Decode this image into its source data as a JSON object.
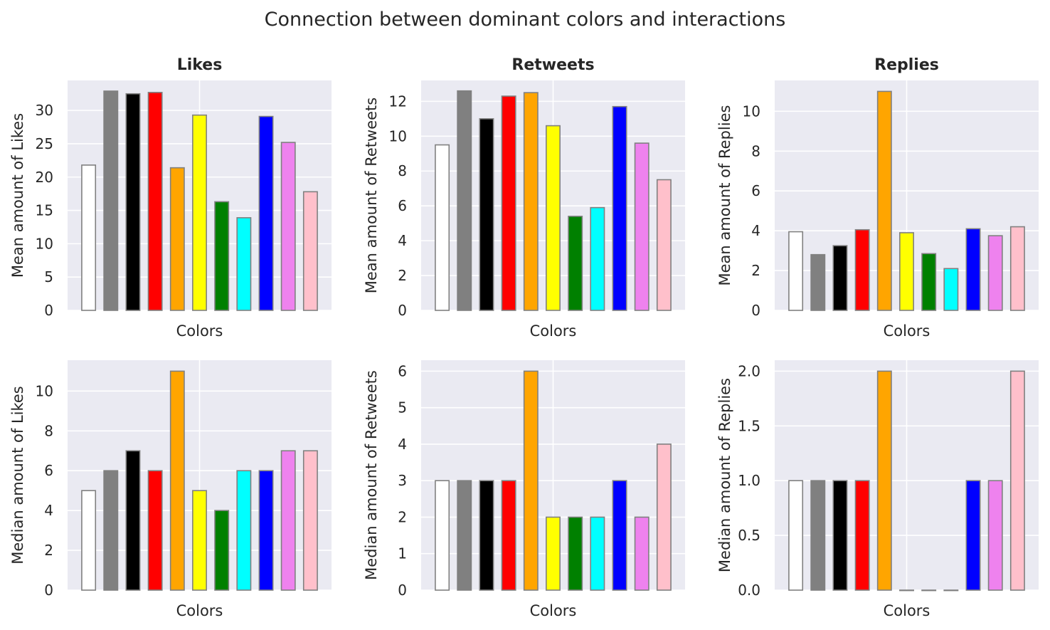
{
  "figure": {
    "title": "Connection between dominant colors and interactions"
  },
  "chart_data": [
    {
      "type": "bar",
      "title": "Likes",
      "xlabel": "Colors",
      "ylabel": "Mean amount of Likes",
      "categories": [
        "white",
        "gray",
        "black",
        "red",
        "orange",
        "yellow",
        "green",
        "cyan",
        "blue",
        "violet",
        "pink"
      ],
      "bar_colors": [
        "#ffffff",
        "#808080",
        "#000000",
        "#ff0000",
        "#ffa500",
        "#ffff00",
        "#008000",
        "#00ffff",
        "#0000ff",
        "#ee82ee",
        "#ffc0cb"
      ],
      "values": [
        21.8,
        32.9,
        32.5,
        32.7,
        21.4,
        29.3,
        16.3,
        13.9,
        29.1,
        25.2,
        17.8
      ],
      "ylim": [
        0,
        34.5
      ],
      "yticks": [
        0,
        5,
        10,
        15,
        20,
        25,
        30
      ],
      "grid": true
    },
    {
      "type": "bar",
      "title": "Retweets",
      "xlabel": "Colors",
      "ylabel": "Mean amount of Retweets",
      "categories": [
        "white",
        "gray",
        "black",
        "red",
        "orange",
        "yellow",
        "green",
        "cyan",
        "blue",
        "violet",
        "pink"
      ],
      "bar_colors": [
        "#ffffff",
        "#808080",
        "#000000",
        "#ff0000",
        "#ffa500",
        "#ffff00",
        "#008000",
        "#00ffff",
        "#0000ff",
        "#ee82ee",
        "#ffc0cb"
      ],
      "values": [
        9.5,
        12.6,
        11.0,
        12.3,
        12.5,
        10.6,
        5.4,
        5.9,
        11.7,
        9.6,
        7.5
      ],
      "ylim": [
        0,
        13.2
      ],
      "yticks": [
        0,
        2,
        4,
        6,
        8,
        10,
        12
      ],
      "grid": true
    },
    {
      "type": "bar",
      "title": "Replies",
      "xlabel": "Colors",
      "ylabel": "Mean amount of Replies",
      "categories": [
        "white",
        "gray",
        "black",
        "red",
        "orange",
        "yellow",
        "green",
        "cyan",
        "blue",
        "violet",
        "pink"
      ],
      "bar_colors": [
        "#ffffff",
        "#808080",
        "#000000",
        "#ff0000",
        "#ffa500",
        "#ffff00",
        "#008000",
        "#00ffff",
        "#0000ff",
        "#ee82ee",
        "#ffc0cb"
      ],
      "values": [
        3.95,
        2.8,
        3.25,
        4.05,
        11.0,
        3.9,
        2.85,
        2.1,
        4.1,
        3.75,
        4.2
      ],
      "ylim": [
        0,
        11.55
      ],
      "yticks": [
        0,
        2,
        4,
        6,
        8,
        10
      ],
      "grid": true
    },
    {
      "type": "bar",
      "title": "",
      "xlabel": "Colors",
      "ylabel": "Median amount of Likes",
      "categories": [
        "white",
        "gray",
        "black",
        "red",
        "orange",
        "yellow",
        "green",
        "cyan",
        "blue",
        "violet",
        "pink"
      ],
      "bar_colors": [
        "#ffffff",
        "#808080",
        "#000000",
        "#ff0000",
        "#ffa500",
        "#ffff00",
        "#008000",
        "#00ffff",
        "#0000ff",
        "#ee82ee",
        "#ffc0cb"
      ],
      "values": [
        5,
        6,
        7,
        6,
        11,
        5,
        4,
        6,
        6,
        7,
        7
      ],
      "ylim": [
        0,
        11.55
      ],
      "yticks": [
        0,
        2,
        4,
        6,
        8,
        10
      ],
      "grid": true
    },
    {
      "type": "bar",
      "title": "",
      "xlabel": "Colors",
      "ylabel": "Median amount of Retweets",
      "categories": [
        "white",
        "gray",
        "black",
        "red",
        "orange",
        "yellow",
        "green",
        "cyan",
        "blue",
        "violet",
        "pink"
      ],
      "bar_colors": [
        "#ffffff",
        "#808080",
        "#000000",
        "#ff0000",
        "#ffa500",
        "#ffff00",
        "#008000",
        "#00ffff",
        "#0000ff",
        "#ee82ee",
        "#ffc0cb"
      ],
      "values": [
        3,
        3,
        3,
        3,
        6,
        2,
        2,
        2,
        3,
        2,
        4
      ],
      "ylim": [
        0,
        6.3
      ],
      "yticks": [
        0,
        1,
        2,
        3,
        4,
        5,
        6
      ],
      "grid": true
    },
    {
      "type": "bar",
      "title": "",
      "xlabel": "Colors",
      "ylabel": "Median amount of Replies",
      "categories": [
        "white",
        "gray",
        "black",
        "red",
        "orange",
        "yellow",
        "green",
        "cyan",
        "blue",
        "violet",
        "pink"
      ],
      "bar_colors": [
        "#ffffff",
        "#808080",
        "#000000",
        "#ff0000",
        "#ffa500",
        "#ffff00",
        "#008000",
        "#00ffff",
        "#0000ff",
        "#ee82ee",
        "#ffc0cb"
      ],
      "values": [
        1,
        1,
        1,
        1,
        2,
        0,
        0,
        0,
        1,
        1,
        2
      ],
      "ylim": [
        0,
        2.1
      ],
      "yticks": [
        "0.0",
        "0.5",
        "1.0",
        "1.5",
        "2.0"
      ],
      "grid": true
    }
  ]
}
